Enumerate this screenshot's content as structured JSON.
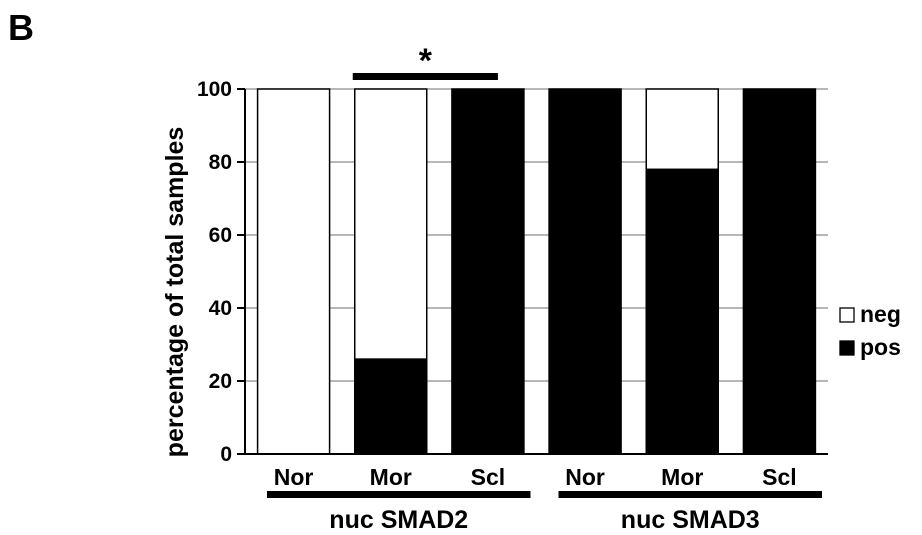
{
  "panel_label": "B",
  "chart_data": {
    "type": "bar",
    "stacked": true,
    "normalized": true,
    "categories": [
      "Nor",
      "Mor",
      "Scl",
      "Nor",
      "Mor",
      "Scl"
    ],
    "groups": [
      {
        "label": "nuc SMAD2",
        "categories": [
          0,
          1,
          2
        ]
      },
      {
        "label": "nuc SMAD3",
        "categories": [
          3,
          4,
          5
        ]
      }
    ],
    "series": [
      {
        "name": "pos",
        "color": "#000000",
        "values": [
          0,
          26,
          100,
          100,
          78,
          100
        ]
      },
      {
        "name": "neg",
        "color": "#ffffff",
        "values": [
          100,
          74,
          0,
          0,
          22,
          0
        ]
      }
    ],
    "ylabel": "percentage of total samples",
    "xlabel": "",
    "ylim": [
      0,
      100
    ],
    "yticks": [
      0,
      20,
      40,
      60,
      80,
      100
    ],
    "grid": true,
    "legend": {
      "placement": "right",
      "entries": [
        "neg",
        "pos"
      ]
    },
    "annotations": [
      {
        "text": "*",
        "between_categories": [
          1,
          2
        ]
      }
    ]
  }
}
